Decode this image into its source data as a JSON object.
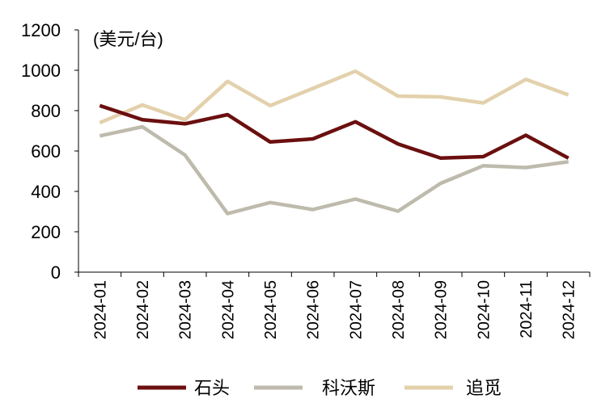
{
  "chart_data": {
    "type": "line",
    "unit_label": "(美元/台)",
    "categories": [
      "2024-01",
      "2024-02",
      "2024-03",
      "2024-04",
      "2024-05",
      "2024-06",
      "2024-07",
      "2024-08",
      "2024-09",
      "2024-10",
      "2024-11",
      "2024-12"
    ],
    "ylim": [
      0,
      1200
    ],
    "yticks": [
      0,
      200,
      400,
      600,
      800,
      1000,
      1200
    ],
    "grid": false,
    "legend_position": "bottom",
    "series": [
      {
        "name": "石头",
        "color": "#6b0f0f",
        "values": [
          825,
          755,
          735,
          780,
          645,
          660,
          745,
          635,
          565,
          572,
          678,
          565
        ]
      },
      {
        "name": "科沃斯",
        "color": "#bebbad",
        "values": [
          675,
          720,
          580,
          290,
          345,
          310,
          362,
          302,
          440,
          527,
          518,
          547
        ]
      },
      {
        "name": "追觅",
        "color": "#e3d1ac",
        "values": [
          740,
          828,
          755,
          945,
          825,
          910,
          995,
          872,
          868,
          838,
          955,
          878
        ]
      }
    ]
  }
}
